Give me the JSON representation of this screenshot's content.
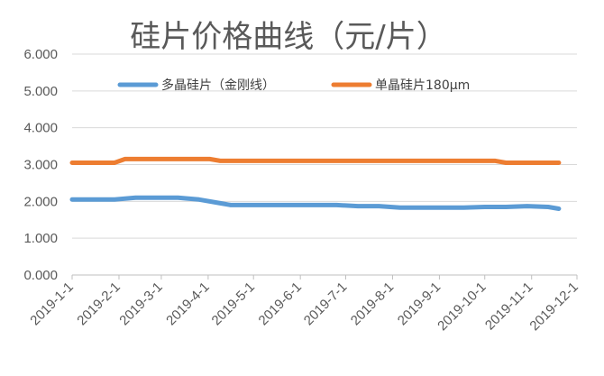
{
  "chart_data": {
    "type": "line",
    "title": "硅片价格曲线（元/片）",
    "xlabel": "",
    "ylabel": "",
    "ylim": [
      0,
      6
    ],
    "yticks": [
      "0.000",
      "1.000",
      "2.000",
      "3.000",
      "4.000",
      "5.000",
      "6.000"
    ],
    "xticks": [
      "2019-1-1",
      "2019-2-1",
      "2019-3-1",
      "2019-4-1",
      "2019-5-1",
      "2019-6-1",
      "2019-7-1",
      "2019-8-1",
      "2019-9-1",
      "2019-10-1",
      "2019-11-1",
      "2019-12-1"
    ],
    "grid": true,
    "legend_position": "top",
    "series": [
      {
        "name": "多晶硅片（金刚线）",
        "color": "#5b9bd5",
        "points": [
          [
            "2019-1-1",
            2.05
          ],
          [
            "2019-1-15",
            2.05
          ],
          [
            "2019-1-29",
            2.05
          ],
          [
            "2019-2-12",
            2.1
          ],
          [
            "2019-2-26",
            2.1
          ],
          [
            "2019-3-12",
            2.1
          ],
          [
            "2019-3-26",
            2.05
          ],
          [
            "2019-4-9",
            1.95
          ],
          [
            "2019-4-16",
            1.9
          ],
          [
            "2019-5-14",
            1.9
          ],
          [
            "2019-6-11",
            1.9
          ],
          [
            "2019-6-25",
            1.9
          ],
          [
            "2019-7-9",
            1.87
          ],
          [
            "2019-7-23",
            1.87
          ],
          [
            "2019-8-6",
            1.83
          ],
          [
            "2019-9-3",
            1.83
          ],
          [
            "2019-9-17",
            1.83
          ],
          [
            "2019-10-1",
            1.85
          ],
          [
            "2019-10-15",
            1.85
          ],
          [
            "2019-10-29",
            1.87
          ],
          [
            "2019-11-12",
            1.85
          ],
          [
            "2019-11-19",
            1.8
          ]
        ]
      },
      {
        "name": "单晶硅片180μm",
        "color": "#ed7d31",
        "points": [
          [
            "2019-1-1",
            3.05
          ],
          [
            "2019-1-29",
            3.05
          ],
          [
            "2019-2-5",
            3.15
          ],
          [
            "2019-3-5",
            3.15
          ],
          [
            "2019-4-2",
            3.15
          ],
          [
            "2019-4-9",
            3.1
          ],
          [
            "2019-7-2",
            3.1
          ],
          [
            "2019-9-30",
            3.1
          ],
          [
            "2019-10-8",
            3.1
          ],
          [
            "2019-10-15",
            3.05
          ],
          [
            "2019-11-19",
            3.05
          ]
        ]
      }
    ]
  }
}
